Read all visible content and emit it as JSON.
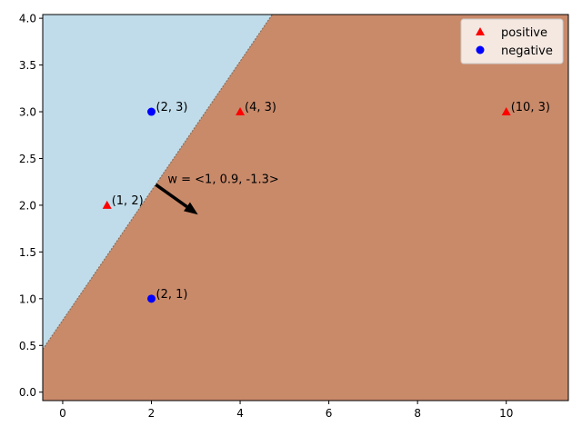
{
  "chart_data": {
    "type": "scatter",
    "title": "",
    "xlabel": "",
    "ylabel": "",
    "xlim": [
      -0.45,
      11.4
    ],
    "ylim": [
      -0.09,
      4.04
    ],
    "xticks": [
      0,
      2,
      4,
      6,
      8,
      10
    ],
    "yticks": [
      0.0,
      0.5,
      1.0,
      1.5,
      2.0,
      2.5,
      3.0,
      3.5,
      4.0
    ],
    "xtick_labels": [
      "0",
      "2",
      "4",
      "6",
      "8",
      "10"
    ],
    "ytick_labels": [
      "0.0",
      "0.5",
      "1.0",
      "1.5",
      "2.0",
      "2.5",
      "3.0",
      "3.5",
      "4.0"
    ],
    "grid": false,
    "legend": "top-right",
    "regions": {
      "positive_color": "#c98a6a",
      "negative_color": "#c0dcea",
      "boundary": {
        "w": [
          1,
          0.9,
          -1.3
        ],
        "note": "w0 + w1*x + w2*y = 0"
      }
    },
    "series": [
      {
        "name": "positive",
        "marker": "triangle",
        "color": "#ff0000",
        "points": [
          {
            "x": 1,
            "y": 2,
            "label": "(1, 2)"
          },
          {
            "x": 4,
            "y": 3,
            "label": "(4, 3)"
          },
          {
            "x": 10,
            "y": 3,
            "label": "(10, 3)"
          }
        ]
      },
      {
        "name": "negative",
        "marker": "circle",
        "color": "#0000ff",
        "points": [
          {
            "x": 2,
            "y": 3,
            "label": "(2, 3)"
          },
          {
            "x": 2,
            "y": 1,
            "label": "(2, 1)"
          }
        ]
      }
    ],
    "annotation": {
      "text": "w = <1, 0.9, -1.3>",
      "arrow_from": {
        "x": 2.1,
        "y": 2.22
      },
      "arrow_to": {
        "x": 3.05,
        "y": 1.9
      }
    }
  }
}
